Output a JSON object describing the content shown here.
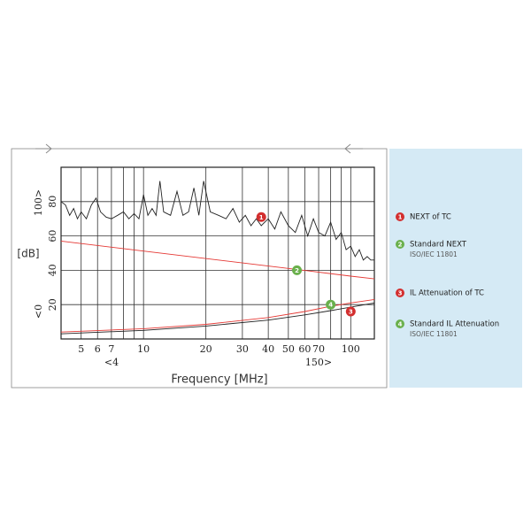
{
  "chart_data": {
    "type": "line",
    "x_label": "Frequency [MHz]",
    "y_label": "[dB]",
    "xscale": "log",
    "xlim": [
      4,
      130
    ],
    "ylim": [
      0,
      100
    ],
    "xticks": [
      5,
      6,
      7,
      10,
      20,
      30,
      40,
      50,
      60,
      70,
      100
    ],
    "xminor": [
      8,
      9,
      80,
      90
    ],
    "yticks": [
      20,
      40,
      60,
      80
    ],
    "grid": true,
    "range_labels": {
      "y_top": "100>",
      "y_bottom": "<0",
      "x_left": "<4",
      "x_right": "150>"
    },
    "series": [
      {
        "name": "NEXT of TC",
        "color": "#222222",
        "badge": "1",
        "badge_color": "#d32f2f",
        "badge_x": 37,
        "badge_y": 71,
        "x": [
          4,
          4.2,
          4.4,
          4.6,
          4.8,
          5,
          5.3,
          5.6,
          5.9,
          6.2,
          6.6,
          7,
          7.5,
          8,
          8.5,
          9,
          9.5,
          10,
          10.5,
          11,
          11.5,
          12,
          12.5,
          13.5,
          14.5,
          15.5,
          16.5,
          17.5,
          18.5,
          19.5,
          21,
          23,
          25,
          27,
          29,
          31,
          33,
          35,
          37,
          40,
          43,
          46,
          50,
          54,
          58,
          62,
          66,
          70,
          75,
          80,
          85,
          90,
          95,
          100,
          105,
          110,
          115,
          120,
          125,
          130
        ],
        "values": [
          80,
          78,
          72,
          76,
          70,
          74,
          70,
          78,
          82,
          74,
          71,
          70,
          72,
          74,
          70,
          73,
          70,
          84,
          72,
          76,
          72,
          92,
          74,
          72,
          86,
          72,
          74,
          88,
          72,
          92,
          74,
          72,
          70,
          76,
          68,
          72,
          66,
          70,
          66,
          70,
          64,
          74,
          66,
          62,
          72,
          60,
          70,
          62,
          60,
          68,
          58,
          62,
          52,
          54,
          48,
          52,
          46,
          48,
          46,
          46
        ]
      },
      {
        "name": "Standard NEXT",
        "note": "ISO/IEC 11801",
        "color": "#e53935",
        "badge": "2",
        "badge_color": "#6ab04c",
        "badge_x": 55,
        "badge_y": 40,
        "x": [
          4,
          10,
          30,
          60,
          100,
          130
        ],
        "values": [
          57,
          51.2,
          44.3,
          39.9,
          36.6,
          35
        ]
      },
      {
        "name": "IL Attenuation of TC",
        "color": "#222222",
        "badge": "3",
        "badge_color": "#d32f2f",
        "badge_x": 100,
        "badge_y": 16,
        "x": [
          4,
          10,
          20,
          40,
          60,
          80,
          100,
          130
        ],
        "values": [
          3,
          5,
          7.5,
          11,
          14,
          16.5,
          18.5,
          21
        ]
      },
      {
        "name": "Standard IL Attenuation",
        "note": "ISO/IEC 11801",
        "color": "#e53935",
        "badge": "4",
        "badge_color": "#6ab04c",
        "badge_x": 80,
        "badge_y": 20,
        "x": [
          4,
          10,
          20,
          40,
          60,
          80,
          100,
          130
        ],
        "values": [
          4,
          6,
          8.5,
          12.5,
          16,
          19,
          21,
          23
        ]
      }
    ]
  }
}
